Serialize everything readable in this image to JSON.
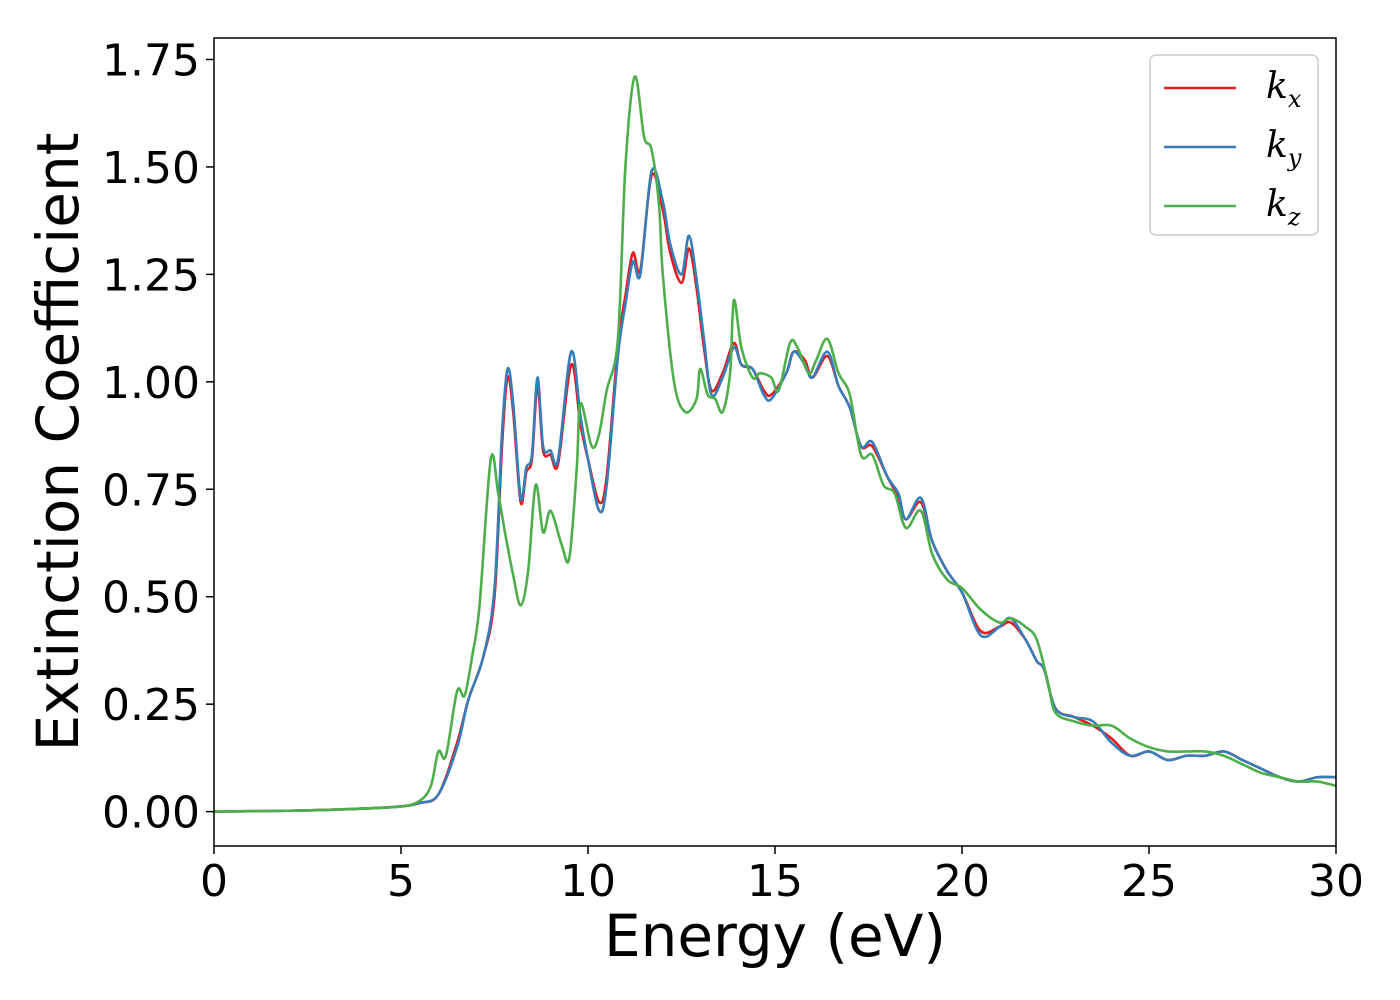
{
  "chart_data": {
    "type": "line",
    "xlabel": "Energy (eV)",
    "ylabel": "Extinction Coefficient",
    "xlim": [
      0,
      30
    ],
    "ylim": [
      -0.08,
      1.8
    ],
    "xticks": [
      0,
      5,
      10,
      15,
      20,
      25,
      30
    ],
    "yticks": [
      0.0,
      0.25,
      0.5,
      0.75,
      1.0,
      1.25,
      1.5,
      1.75
    ],
    "xtick_labels": [
      "0",
      "5",
      "10",
      "15",
      "20",
      "25",
      "30"
    ],
    "ytick_labels": [
      "0.00",
      "0.25",
      "0.50",
      "0.75",
      "1.00",
      "1.25",
      "1.50",
      "1.75"
    ],
    "grid": false,
    "legend_position": "top-right",
    "series": [
      {
        "name": "k",
        "subscript": "x",
        "color": "#e41a1c",
        "points": [
          [
            0,
            0.0
          ],
          [
            1,
            0.001
          ],
          [
            2,
            0.002
          ],
          [
            3,
            0.004
          ],
          [
            4,
            0.007
          ],
          [
            5,
            0.012
          ],
          [
            5.5,
            0.02
          ],
          [
            6,
            0.04
          ],
          [
            6.5,
            0.16
          ],
          [
            6.8,
            0.26
          ],
          [
            7.2,
            0.36
          ],
          [
            7.5,
            0.5
          ],
          [
            7.7,
            0.85
          ],
          [
            7.85,
            1.01
          ],
          [
            8.0,
            0.93
          ],
          [
            8.2,
            0.72
          ],
          [
            8.35,
            0.79
          ],
          [
            8.5,
            0.82
          ],
          [
            8.65,
            0.99
          ],
          [
            8.8,
            0.84
          ],
          [
            9.0,
            0.83
          ],
          [
            9.2,
            0.81
          ],
          [
            9.55,
            1.04
          ],
          [
            9.8,
            0.9
          ],
          [
            10.0,
            0.82
          ],
          [
            10.3,
            0.72
          ],
          [
            10.5,
            0.78
          ],
          [
            10.8,
            1.08
          ],
          [
            11.0,
            1.2
          ],
          [
            11.2,
            1.3
          ],
          [
            11.4,
            1.26
          ],
          [
            11.7,
            1.48
          ],
          [
            12.0,
            1.4
          ],
          [
            12.2,
            1.3
          ],
          [
            12.5,
            1.23
          ],
          [
            12.7,
            1.31
          ],
          [
            12.9,
            1.22
          ],
          [
            13.1,
            1.08
          ],
          [
            13.3,
            0.98
          ],
          [
            13.6,
            1.02
          ],
          [
            13.9,
            1.09
          ],
          [
            14.1,
            1.04
          ],
          [
            14.4,
            1.03
          ],
          [
            14.7,
            0.98
          ],
          [
            14.9,
            0.97
          ],
          [
            15.3,
            1.02
          ],
          [
            15.5,
            1.07
          ],
          [
            15.8,
            1.05
          ],
          [
            16.0,
            1.01
          ],
          [
            16.4,
            1.06
          ],
          [
            16.7,
            0.99
          ],
          [
            17.0,
            0.94
          ],
          [
            17.3,
            0.85
          ],
          [
            17.6,
            0.85
          ],
          [
            18.0,
            0.78
          ],
          [
            18.3,
            0.73
          ],
          [
            18.5,
            0.68
          ],
          [
            18.9,
            0.72
          ],
          [
            19.2,
            0.63
          ],
          [
            19.6,
            0.56
          ],
          [
            20.0,
            0.51
          ],
          [
            20.5,
            0.42
          ],
          [
            21.0,
            0.43
          ],
          [
            21.3,
            0.44
          ],
          [
            21.7,
            0.4
          ],
          [
            22.0,
            0.35
          ],
          [
            22.2,
            0.33
          ],
          [
            22.5,
            0.24
          ],
          [
            23.0,
            0.22
          ],
          [
            23.5,
            0.2
          ],
          [
            24.0,
            0.17
          ],
          [
            24.5,
            0.13
          ],
          [
            25.0,
            0.14
          ],
          [
            25.5,
            0.12
          ],
          [
            26.0,
            0.13
          ],
          [
            26.5,
            0.13
          ],
          [
            27.0,
            0.14
          ],
          [
            27.5,
            0.12
          ],
          [
            28.0,
            0.1
          ],
          [
            28.5,
            0.08
          ],
          [
            29.0,
            0.07
          ],
          [
            29.5,
            0.08
          ],
          [
            30.0,
            0.08
          ]
        ]
      },
      {
        "name": "k",
        "subscript": "y",
        "color": "#377eb8",
        "points": [
          [
            0,
            0.0
          ],
          [
            1,
            0.001
          ],
          [
            2,
            0.002
          ],
          [
            3,
            0.004
          ],
          [
            4,
            0.007
          ],
          [
            5,
            0.012
          ],
          [
            5.5,
            0.02
          ],
          [
            6,
            0.04
          ],
          [
            6.5,
            0.15
          ],
          [
            6.8,
            0.26
          ],
          [
            7.2,
            0.36
          ],
          [
            7.5,
            0.52
          ],
          [
            7.7,
            0.88
          ],
          [
            7.85,
            1.03
          ],
          [
            8.0,
            0.95
          ],
          [
            8.2,
            0.73
          ],
          [
            8.35,
            0.8
          ],
          [
            8.5,
            0.83
          ],
          [
            8.65,
            1.01
          ],
          [
            8.8,
            0.85
          ],
          [
            9.0,
            0.84
          ],
          [
            9.2,
            0.82
          ],
          [
            9.55,
            1.07
          ],
          [
            9.8,
            0.92
          ],
          [
            10.0,
            0.82
          ],
          [
            10.3,
            0.7
          ],
          [
            10.5,
            0.76
          ],
          [
            10.8,
            1.06
          ],
          [
            11.0,
            1.18
          ],
          [
            11.2,
            1.28
          ],
          [
            11.4,
            1.25
          ],
          [
            11.7,
            1.49
          ],
          [
            12.0,
            1.42
          ],
          [
            12.2,
            1.32
          ],
          [
            12.5,
            1.25
          ],
          [
            12.7,
            1.34
          ],
          [
            12.9,
            1.24
          ],
          [
            13.1,
            1.1
          ],
          [
            13.3,
            0.97
          ],
          [
            13.6,
            1.01
          ],
          [
            13.9,
            1.08
          ],
          [
            14.1,
            1.04
          ],
          [
            14.4,
            1.03
          ],
          [
            14.7,
            0.97
          ],
          [
            14.9,
            0.96
          ],
          [
            15.3,
            1.02
          ],
          [
            15.5,
            1.07
          ],
          [
            15.8,
            1.04
          ],
          [
            16.0,
            1.01
          ],
          [
            16.4,
            1.07
          ],
          [
            16.7,
            0.99
          ],
          [
            17.0,
            0.94
          ],
          [
            17.3,
            0.85
          ],
          [
            17.6,
            0.86
          ],
          [
            18.0,
            0.78
          ],
          [
            18.3,
            0.74
          ],
          [
            18.5,
            0.68
          ],
          [
            18.9,
            0.73
          ],
          [
            19.2,
            0.63
          ],
          [
            19.6,
            0.56
          ],
          [
            20.0,
            0.51
          ],
          [
            20.5,
            0.41
          ],
          [
            21.0,
            0.43
          ],
          [
            21.3,
            0.45
          ],
          [
            21.7,
            0.4
          ],
          [
            22.0,
            0.35
          ],
          [
            22.2,
            0.33
          ],
          [
            22.5,
            0.24
          ],
          [
            23.0,
            0.22
          ],
          [
            23.5,
            0.21
          ],
          [
            24.0,
            0.16
          ],
          [
            24.5,
            0.13
          ],
          [
            25.0,
            0.14
          ],
          [
            25.5,
            0.12
          ],
          [
            26.0,
            0.13
          ],
          [
            26.5,
            0.13
          ],
          [
            27.0,
            0.14
          ],
          [
            27.5,
            0.12
          ],
          [
            28.0,
            0.1
          ],
          [
            28.5,
            0.08
          ],
          [
            29.0,
            0.07
          ],
          [
            29.5,
            0.08
          ],
          [
            30.0,
            0.08
          ]
        ]
      },
      {
        "name": "k",
        "subscript": "z",
        "color": "#4daf4a",
        "points": [
          [
            0,
            0.0
          ],
          [
            1,
            0.001
          ],
          [
            2,
            0.002
          ],
          [
            3,
            0.004
          ],
          [
            4,
            0.007
          ],
          [
            5,
            0.012
          ],
          [
            5.5,
            0.025
          ],
          [
            5.8,
            0.06
          ],
          [
            6.0,
            0.14
          ],
          [
            6.2,
            0.13
          ],
          [
            6.5,
            0.28
          ],
          [
            6.7,
            0.27
          ],
          [
            6.9,
            0.36
          ],
          [
            7.1,
            0.48
          ],
          [
            7.4,
            0.82
          ],
          [
            7.6,
            0.74
          ],
          [
            7.8,
            0.64
          ],
          [
            8.0,
            0.55
          ],
          [
            8.2,
            0.48
          ],
          [
            8.4,
            0.56
          ],
          [
            8.6,
            0.76
          ],
          [
            8.8,
            0.65
          ],
          [
            9.0,
            0.7
          ],
          [
            9.3,
            0.62
          ],
          [
            9.5,
            0.59
          ],
          [
            9.7,
            0.8
          ],
          [
            9.8,
            0.95
          ],
          [
            10.1,
            0.85
          ],
          [
            10.3,
            0.88
          ],
          [
            10.5,
            0.98
          ],
          [
            10.8,
            1.1
          ],
          [
            11.0,
            1.5
          ],
          [
            11.25,
            1.71
          ],
          [
            11.5,
            1.57
          ],
          [
            11.7,
            1.54
          ],
          [
            11.9,
            1.41
          ],
          [
            12.0,
            1.25
          ],
          [
            12.3,
            1.0
          ],
          [
            12.6,
            0.93
          ],
          [
            12.9,
            0.96
          ],
          [
            13.0,
            1.03
          ],
          [
            13.2,
            0.97
          ],
          [
            13.4,
            0.96
          ],
          [
            13.6,
            0.93
          ],
          [
            13.8,
            1.02
          ],
          [
            13.9,
            1.19
          ],
          [
            14.1,
            1.08
          ],
          [
            14.4,
            1.01
          ],
          [
            14.6,
            1.02
          ],
          [
            14.9,
            1.01
          ],
          [
            15.1,
            0.98
          ],
          [
            15.4,
            1.09
          ],
          [
            15.6,
            1.08
          ],
          [
            15.9,
            1.02
          ],
          [
            16.1,
            1.05
          ],
          [
            16.4,
            1.1
          ],
          [
            16.7,
            1.02
          ],
          [
            17.0,
            0.97
          ],
          [
            17.3,
            0.83
          ],
          [
            17.6,
            0.83
          ],
          [
            17.9,
            0.76
          ],
          [
            18.2,
            0.74
          ],
          [
            18.5,
            0.66
          ],
          [
            18.9,
            0.7
          ],
          [
            19.2,
            0.6
          ],
          [
            19.6,
            0.54
          ],
          [
            20.0,
            0.52
          ],
          [
            20.5,
            0.47
          ],
          [
            21.0,
            0.44
          ],
          [
            21.3,
            0.45
          ],
          [
            21.7,
            0.43
          ],
          [
            22.0,
            0.4
          ],
          [
            22.3,
            0.3
          ],
          [
            22.5,
            0.23
          ],
          [
            23.0,
            0.21
          ],
          [
            23.5,
            0.2
          ],
          [
            24.0,
            0.2
          ],
          [
            24.5,
            0.17
          ],
          [
            25.0,
            0.15
          ],
          [
            25.5,
            0.14
          ],
          [
            26.0,
            0.14
          ],
          [
            26.5,
            0.14
          ],
          [
            27.0,
            0.13
          ],
          [
            27.5,
            0.11
          ],
          [
            28.0,
            0.09
          ],
          [
            28.5,
            0.08
          ],
          [
            29.0,
            0.07
          ],
          [
            29.5,
            0.07
          ],
          [
            30.0,
            0.06
          ]
        ]
      }
    ]
  }
}
